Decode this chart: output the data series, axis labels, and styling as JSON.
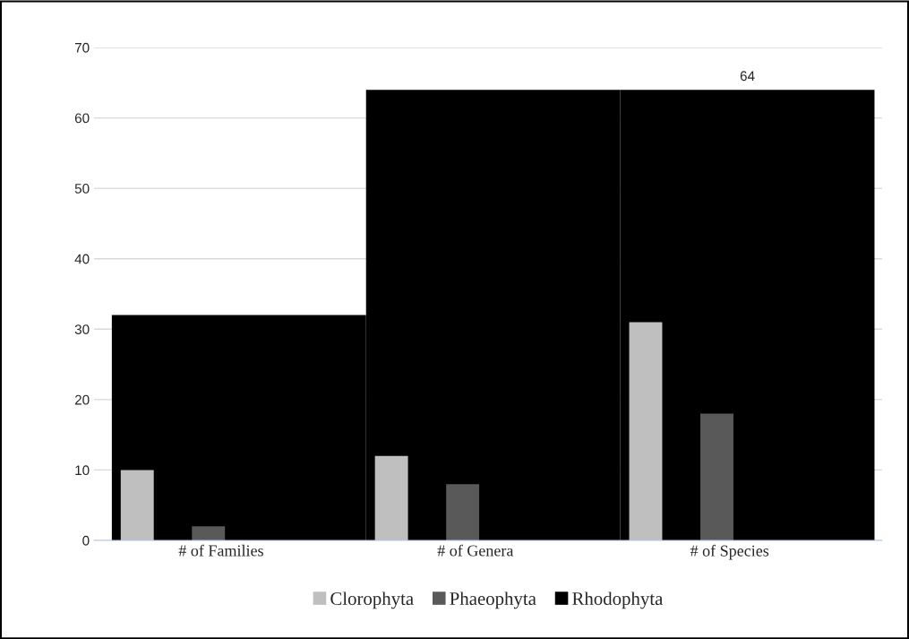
{
  "chart_data": {
    "type": "bar",
    "categories": [
      "# of Families",
      "# of Genera",
      "# of Species"
    ],
    "series": [
      {
        "name": "Clorophyta",
        "color": "#bfbfbf",
        "values": [
          10,
          12,
          31
        ]
      },
      {
        "name": "Phaeophyta",
        "color": "#595959",
        "values": [
          2,
          8,
          18
        ]
      },
      {
        "name": "Rhodophyta",
        "color": "#000000",
        "values": [
          32,
          64,
          64
        ],
        "value_labels": [
          null,
          null,
          "64"
        ]
      }
    ],
    "ylim": [
      0,
      70
    ],
    "yticks": [
      0,
      10,
      20,
      30,
      40,
      50,
      60,
      70
    ],
    "grid": "y",
    "legend": "bottom"
  }
}
